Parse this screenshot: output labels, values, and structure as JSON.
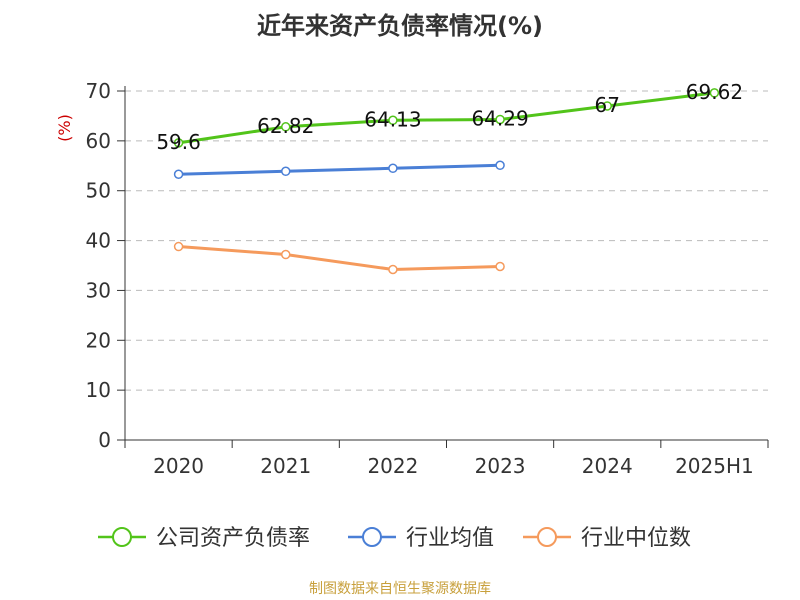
{
  "chart_data": {
    "type": "line",
    "title": "近年来资产负债率情况(%)",
    "ylabel": "(%)",
    "xlabel": "",
    "categories": [
      "2020",
      "2021",
      "2022",
      "2023",
      "2024",
      "2025H1"
    ],
    "ylim": [
      0,
      70
    ],
    "yticks": [
      0,
      10,
      20,
      30,
      40,
      50,
      60,
      70
    ],
    "grid": true,
    "legend_position": "bottom",
    "series": [
      {
        "name": "公司资产负债率",
        "color": "#52c41a",
        "values": [
          59.6,
          62.82,
          64.13,
          64.29,
          67,
          69.62
        ],
        "labels": [
          "59.6",
          "62.82",
          "64.13",
          "64.29",
          "67",
          "69.62"
        ]
      },
      {
        "name": "行业均值",
        "color": "#4a7fd6",
        "values": [
          53.3,
          53.9,
          54.5,
          55.1,
          null,
          null
        ]
      },
      {
        "name": "行业中位数",
        "color": "#f59a5c",
        "values": [
          38.8,
          37.2,
          34.2,
          34.8,
          null,
          null
        ]
      }
    ]
  },
  "source_text": "制图数据来自恒生聚源数据库"
}
